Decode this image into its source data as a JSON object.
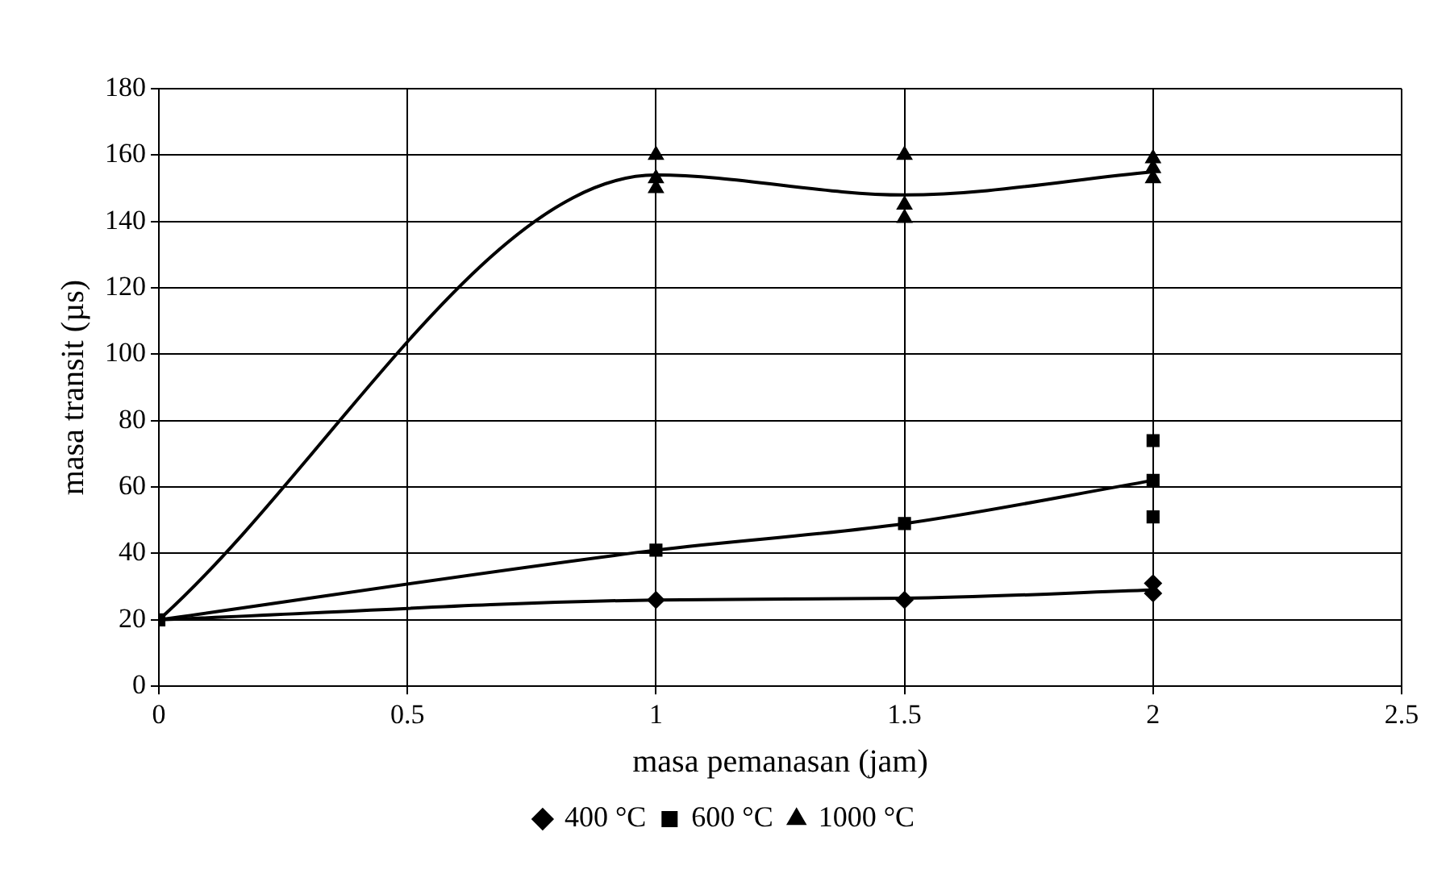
{
  "chart_data": {
    "type": "scatter",
    "xlabel": "masa pemanasan (jam)",
    "ylabel": "masa transit (µs)",
    "xlim": [
      0,
      2.5
    ],
    "xticks": [
      0,
      0.5,
      1,
      1.5,
      2,
      2.5
    ],
    "ylim": [
      0,
      180
    ],
    "yticks": [
      0,
      20,
      40,
      60,
      80,
      100,
      120,
      140,
      160,
      180
    ],
    "grid": true,
    "legend": "bottom",
    "series": [
      {
        "name": "400 °C",
        "type": "scatter",
        "marker": "diamond",
        "color": "#000000",
        "x": [
          1,
          1.5,
          2,
          2
        ],
        "values": [
          26,
          26,
          31,
          28
        ]
      },
      {
        "name": "600 °C",
        "type": "scatter",
        "marker": "square",
        "color": "#000000",
        "x": [
          0,
          1,
          1.5,
          2,
          2,
          2
        ],
        "values": [
          20,
          41,
          49,
          74,
          62,
          51
        ]
      },
      {
        "name": "1000 °C",
        "type": "scatter",
        "marker": "triangle",
        "color": "#000000",
        "x": [
          1,
          1,
          1,
          1.5,
          1.5,
          1.5,
          2,
          2,
          2
        ],
        "values": [
          160,
          153,
          150,
          160,
          145,
          141,
          159,
          156,
          153
        ]
      },
      {
        "type": "line",
        "marker": "none",
        "color": "#000000",
        "x": [
          0,
          1,
          1.5,
          2
        ],
        "values": [
          20,
          26,
          26.5,
          29
        ]
      },
      {
        "type": "line",
        "marker": "none",
        "color": "#000000",
        "x": [
          0,
          1,
          1.5,
          2
        ],
        "values": [
          20,
          41,
          49,
          62
        ]
      },
      {
        "type": "line",
        "marker": "none",
        "color": "#000000",
        "x": [
          0,
          1,
          1.5,
          2
        ],
        "values": [
          20,
          154,
          148,
          155
        ]
      }
    ]
  }
}
